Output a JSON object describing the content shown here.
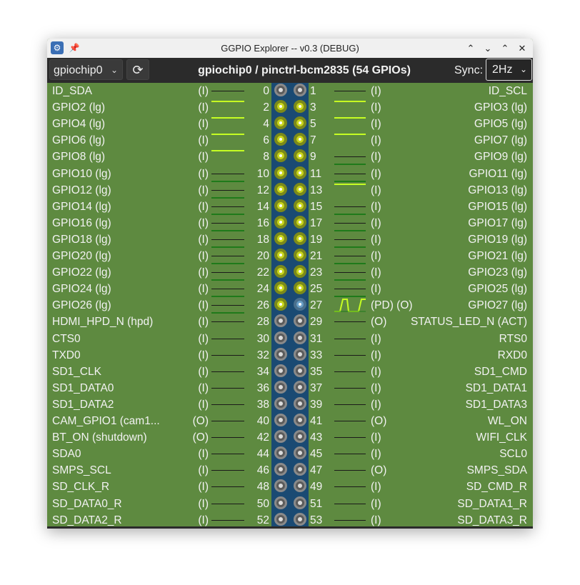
{
  "window": {
    "title": "GGPIO Explorer -- v0.3 (DEBUG)"
  },
  "toolbar": {
    "chip_select": "gpiochip0",
    "chip_info": "gpiochip0  /  pinctrl-bcm2835 (54 GPIOs)",
    "sync_label": "Sync:",
    "sync_value": "2Hz"
  },
  "icons": {
    "app": "app-icon",
    "pin": "pin-icon",
    "maximize": "chevron-double-up-icon",
    "minimize": "chevron-down-icon",
    "restore": "chevron-up-icon",
    "close": "close-icon",
    "refresh": "refresh-icon",
    "dropdown": "chevron-down-icon"
  },
  "colors": {
    "background": "#5e8a40",
    "header_strip": "#1a4a73",
    "level_high": "#c6ff22",
    "level_low": "#1f7a1a"
  },
  "rows": [
    {
      "left": {
        "name": "ID_SDA",
        "mode": "(I)",
        "num": "0",
        "level": "none"
      },
      "right": {
        "num": "1",
        "name": "ID_SCL",
        "mode": "(I)",
        "level": "none"
      }
    },
    {
      "left": {
        "name": "GPIO2 (lg)",
        "mode": "(I)",
        "num": "2",
        "level": "high"
      },
      "right": {
        "num": "3",
        "name": "GPIO3 (lg)",
        "mode": "(I)",
        "level": "high"
      }
    },
    {
      "left": {
        "name": "GPIO4 (lg)",
        "mode": "(I)",
        "num": "4",
        "level": "high"
      },
      "right": {
        "num": "5",
        "name": "GPIO5 (lg)",
        "mode": "(I)",
        "level": "high"
      }
    },
    {
      "left": {
        "name": "GPIO6 (lg)",
        "mode": "(I)",
        "num": "6",
        "level": "high"
      },
      "right": {
        "num": "7",
        "name": "GPIO7 (lg)",
        "mode": "(I)",
        "level": "high"
      }
    },
    {
      "left": {
        "name": "GPIO8 (lg)",
        "mode": "(I)",
        "num": "8",
        "level": "high"
      },
      "right": {
        "num": "9",
        "name": "GPIO9 (lg)",
        "mode": "(I)",
        "level": "low"
      }
    },
    {
      "left": {
        "name": "GPIO10 (lg)",
        "mode": "(I)",
        "num": "10",
        "level": "low"
      },
      "right": {
        "num": "11",
        "name": "GPIO11 (lg)",
        "mode": "(I)",
        "level": "low"
      }
    },
    {
      "left": {
        "name": "GPIO12 (lg)",
        "mode": "(I)",
        "num": "12",
        "level": "low"
      },
      "right": {
        "num": "13",
        "name": "GPIO13 (lg)",
        "mode": "(I)",
        "level": "high"
      }
    },
    {
      "left": {
        "name": "GPIO14 (lg)",
        "mode": "(I)",
        "num": "14",
        "level": "low"
      },
      "right": {
        "num": "15",
        "name": "GPIO15 (lg)",
        "mode": "(I)",
        "level": "low"
      }
    },
    {
      "left": {
        "name": "GPIO16 (lg)",
        "mode": "(I)",
        "num": "16",
        "level": "low"
      },
      "right": {
        "num": "17",
        "name": "GPIO17 (lg)",
        "mode": "(I)",
        "level": "low"
      }
    },
    {
      "left": {
        "name": "GPIO18 (lg)",
        "mode": "(I)",
        "num": "18",
        "level": "low"
      },
      "right": {
        "num": "19",
        "name": "GPIO19 (lg)",
        "mode": "(I)",
        "level": "low"
      }
    },
    {
      "left": {
        "name": "GPIO20 (lg)",
        "mode": "(I)",
        "num": "20",
        "level": "low"
      },
      "right": {
        "num": "21",
        "name": "GPIO21 (lg)",
        "mode": "(I)",
        "level": "low"
      }
    },
    {
      "left": {
        "name": "GPIO22 (lg)",
        "mode": "(I)",
        "num": "22",
        "level": "low"
      },
      "right": {
        "num": "23",
        "name": "GPIO23 (lg)",
        "mode": "(I)",
        "level": "low"
      }
    },
    {
      "left": {
        "name": "GPIO24 (lg)",
        "mode": "(I)",
        "num": "24",
        "level": "low"
      },
      "right": {
        "num": "25",
        "name": "GPIO25 (lg)",
        "mode": "(I)",
        "level": "low"
      }
    },
    {
      "left": {
        "name": "GPIO26 (lg)",
        "mode": "(I)",
        "num": "26",
        "level": "low"
      },
      "right": {
        "num": "27",
        "name": "GPIO27 (lg)",
        "mode": "(PD) (O)",
        "level": "pulse"
      }
    },
    {
      "left": {
        "name": "HDMI_HPD_N (hpd)",
        "mode": "(I)",
        "num": "28",
        "level": "none"
      },
      "right": {
        "num": "29",
        "name": "STATUS_LED_N (ACT)",
        "mode": "(O)",
        "level": "none"
      }
    },
    {
      "left": {
        "name": "CTS0",
        "mode": "(I)",
        "num": "30",
        "level": "none"
      },
      "right": {
        "num": "31",
        "name": "RTS0",
        "mode": "(I)",
        "level": "none"
      }
    },
    {
      "left": {
        "name": "TXD0",
        "mode": "(I)",
        "num": "32",
        "level": "none"
      },
      "right": {
        "num": "33",
        "name": "RXD0",
        "mode": "(I)",
        "level": "none"
      }
    },
    {
      "left": {
        "name": "SD1_CLK",
        "mode": "(I)",
        "num": "34",
        "level": "none"
      },
      "right": {
        "num": "35",
        "name": "SD1_CMD",
        "mode": "(I)",
        "level": "none"
      }
    },
    {
      "left": {
        "name": "SD1_DATA0",
        "mode": "(I)",
        "num": "36",
        "level": "none"
      },
      "right": {
        "num": "37",
        "name": "SD1_DATA1",
        "mode": "(I)",
        "level": "none"
      }
    },
    {
      "left": {
        "name": "SD1_DATA2",
        "mode": "(I)",
        "num": "38",
        "level": "none"
      },
      "right": {
        "num": "39",
        "name": "SD1_DATA3",
        "mode": "(I)",
        "level": "none"
      }
    },
    {
      "left": {
        "name": "CAM_GPIO1 (cam1...",
        "mode": "(O)",
        "num": "40",
        "level": "none"
      },
      "right": {
        "num": "41",
        "name": "WL_ON",
        "mode": "(O)",
        "level": "none"
      }
    },
    {
      "left": {
        "name": "BT_ON (shutdown)",
        "mode": "(O)",
        "num": "42",
        "level": "none"
      },
      "right": {
        "num": "43",
        "name": "WIFI_CLK",
        "mode": "(I)",
        "level": "none"
      }
    },
    {
      "left": {
        "name": "SDA0",
        "mode": "(I)",
        "num": "44",
        "level": "none"
      },
      "right": {
        "num": "45",
        "name": "SCL0",
        "mode": "(I)",
        "level": "none"
      }
    },
    {
      "left": {
        "name": "SMPS_SCL",
        "mode": "(I)",
        "num": "46",
        "level": "none"
      },
      "right": {
        "num": "47",
        "name": "SMPS_SDA",
        "mode": "(O)",
        "level": "none"
      }
    },
    {
      "left": {
        "name": "SD_CLK_R",
        "mode": "(I)",
        "num": "48",
        "level": "none"
      },
      "right": {
        "num": "49",
        "name": "SD_CMD_R",
        "mode": "(I)",
        "level": "none"
      }
    },
    {
      "left": {
        "name": "SD_DATA0_R",
        "mode": "(I)",
        "num": "50",
        "level": "none"
      },
      "right": {
        "num": "51",
        "name": "SD_DATA1_R",
        "mode": "(I)",
        "level": "none"
      }
    },
    {
      "left": {
        "name": "SD_DATA2_R",
        "mode": "(I)",
        "num": "52",
        "level": "none"
      },
      "right": {
        "num": "53",
        "name": "SD_DATA3_R",
        "mode": "(I)",
        "level": "none"
      }
    }
  ]
}
